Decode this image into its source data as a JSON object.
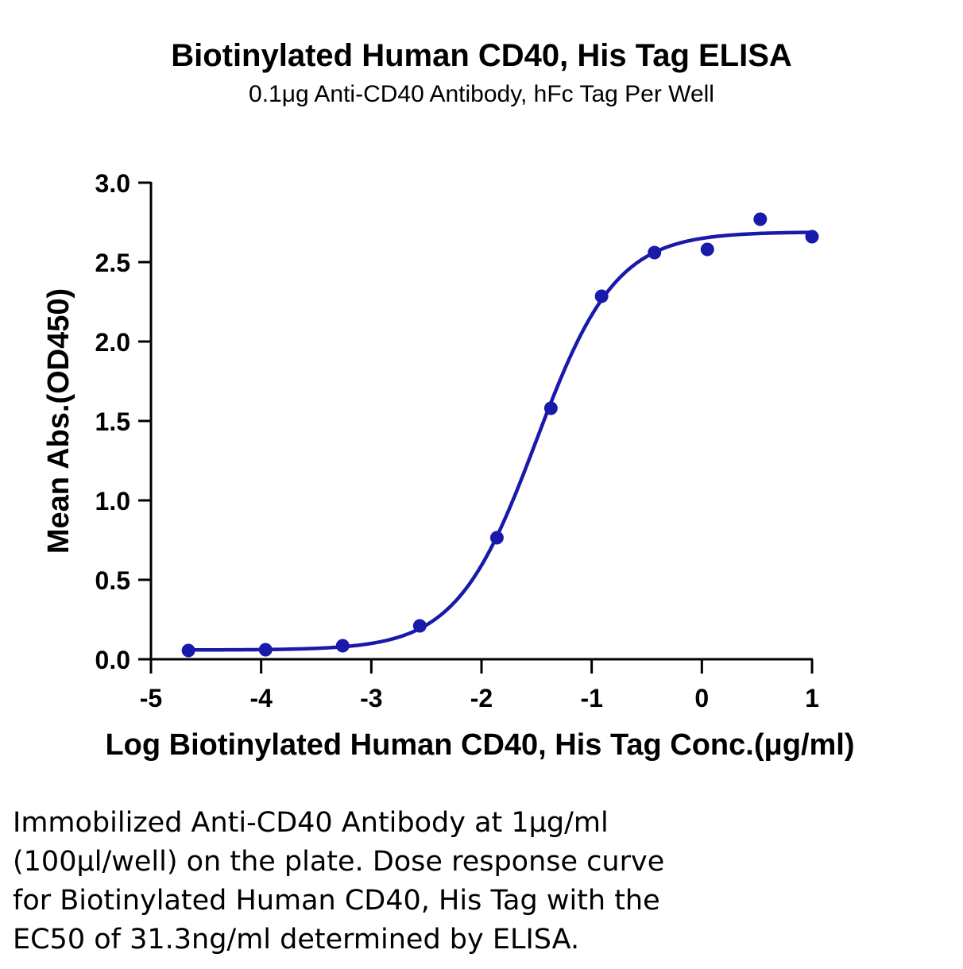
{
  "chart_data": {
    "type": "scatter",
    "title": "Biotinylated Human CD40, His Tag ELISA",
    "subtitle": "0.1μg Anti-CD40 Antibody, hFc Tag Per Well",
    "xlabel": "Log Biotinylated Human CD40, His Tag Conc.(μg/ml)",
    "ylabel": "Mean Abs.(OD450)",
    "xlim": [
      -5,
      1
    ],
    "ylim": [
      0,
      3.0
    ],
    "x_ticks": [
      "-5",
      "-4",
      "-3",
      "-2",
      "-1",
      "0",
      "1"
    ],
    "y_ticks": [
      "0.0",
      "0.5",
      "1.0",
      "1.5",
      "2.0",
      "2.5",
      "3.0"
    ],
    "grid": false,
    "series": [
      {
        "points": [
          {
            "x": -4.66,
            "y": 0.055
          },
          {
            "x": -3.96,
            "y": 0.06
          },
          {
            "x": -3.26,
            "y": 0.085
          },
          {
            "x": -2.56,
            "y": 0.21
          },
          {
            "x": -1.86,
            "y": 0.765
          },
          {
            "x": -1.37,
            "y": 1.58
          },
          {
            "x": -0.91,
            "y": 2.285
          },
          {
            "x": -0.43,
            "y": 2.56
          },
          {
            "x": 0.05,
            "y": 2.58
          },
          {
            "x": 0.53,
            "y": 2.77
          },
          {
            "x": 1.0,
            "y": 2.66
          }
        ],
        "fit": {
          "model": "4PL",
          "bottom": 0.058,
          "top": 2.69,
          "logEC50": -1.504,
          "hill": 1.2
        },
        "color": "#1a1aaa"
      }
    ]
  },
  "caption_lines": [
    "Immobilized Anti-CD40 Antibody at 1μg/ml",
    "(100μl/well) on the plate. Dose response curve",
    "for Biotinylated Human CD40, His Tag with the",
    "EC50 of 31.3ng/ml determined by ELISA."
  ]
}
